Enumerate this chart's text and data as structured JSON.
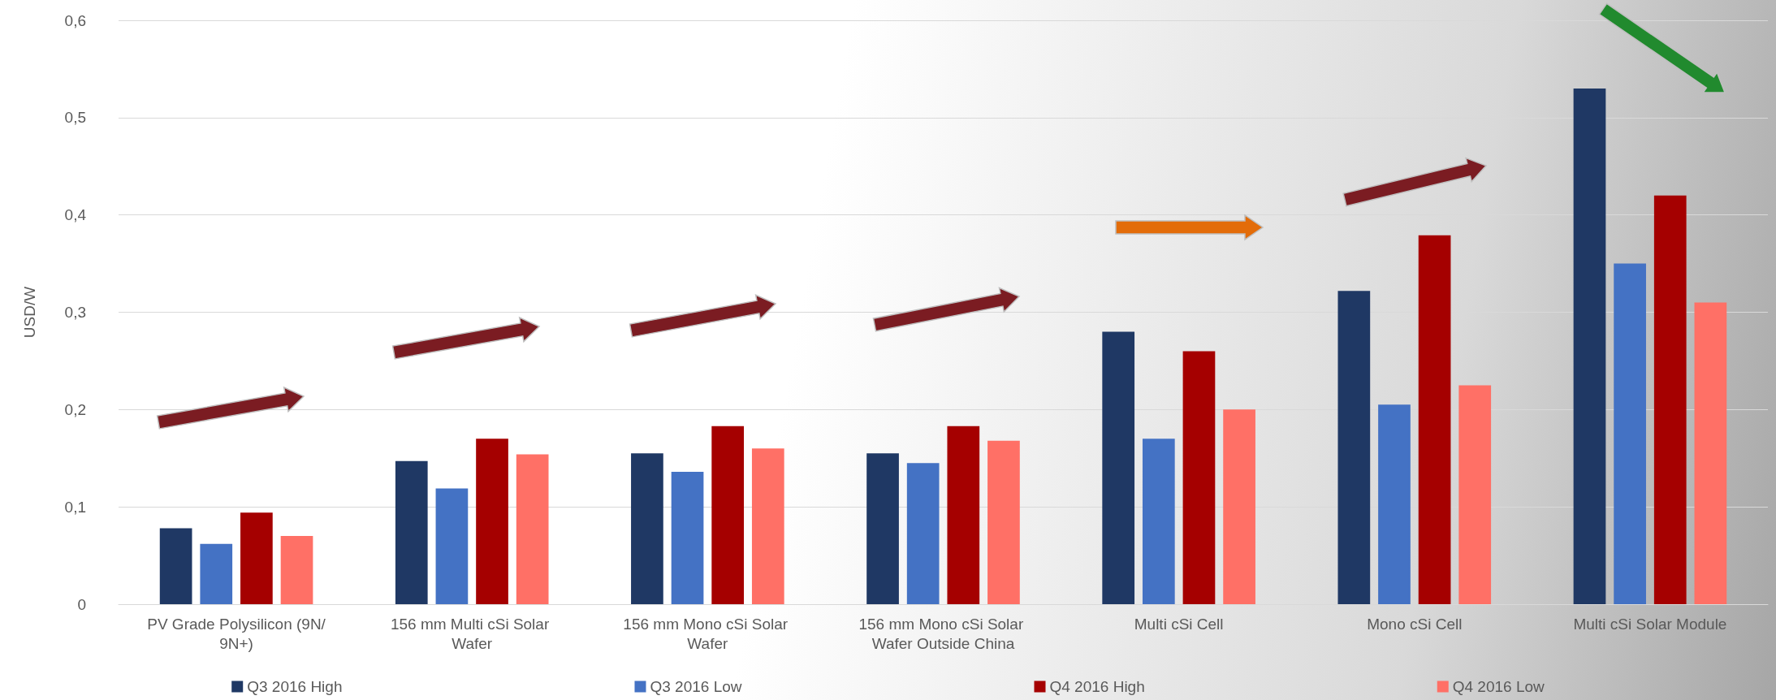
{
  "chart_data": {
    "type": "bar",
    "ylabel": "USD/W",
    "categories": [
      "PV Grade Polysilicon (9N/9N+)",
      "156 mm Multi cSi Solar Wafer",
      "156 mm Mono cSi Solar Wafer",
      "156 mm Mono cSi Solar Wafer Outside China",
      "Multi cSi Cell",
      "Mono cSi Cell",
      "Multi cSi Solar Module"
    ],
    "series": [
      {
        "name": "Q3 2016 High",
        "color": "#1f3864",
        "values": [
          0.078,
          0.147,
          0.155,
          0.155,
          0.28,
          0.322,
          0.53
        ]
      },
      {
        "name": "Q3 2016 Low",
        "color": "#4472c4",
        "values": [
          0.062,
          0.119,
          0.136,
          0.145,
          0.17,
          0.205,
          0.35
        ]
      },
      {
        "name": "Q4 2016 High",
        "color": "#a50000",
        "values": [
          0.094,
          0.17,
          0.183,
          0.183,
          0.26,
          0.379,
          0.42
        ]
      },
      {
        "name": "Q4 2016 Low",
        "color": "#ff7066",
        "values": [
          0.07,
          0.154,
          0.16,
          0.168,
          0.2,
          0.225,
          0.31
        ]
      }
    ],
    "ylim": [
      0,
      0.6
    ],
    "yticks": [
      0,
      {
        "value": 0.1,
        "label": "0,1"
      },
      {
        "value": 0.2,
        "label": "0,2"
      },
      {
        "value": 0.3,
        "label": "0,3"
      },
      {
        "value": 0.4,
        "label": "0,4"
      },
      {
        "value": 0.5,
        "label": "0,5"
      },
      {
        "value": 0.6,
        "label": "0,6"
      }
    ],
    "grid": "y",
    "legend": "bottom"
  }
}
